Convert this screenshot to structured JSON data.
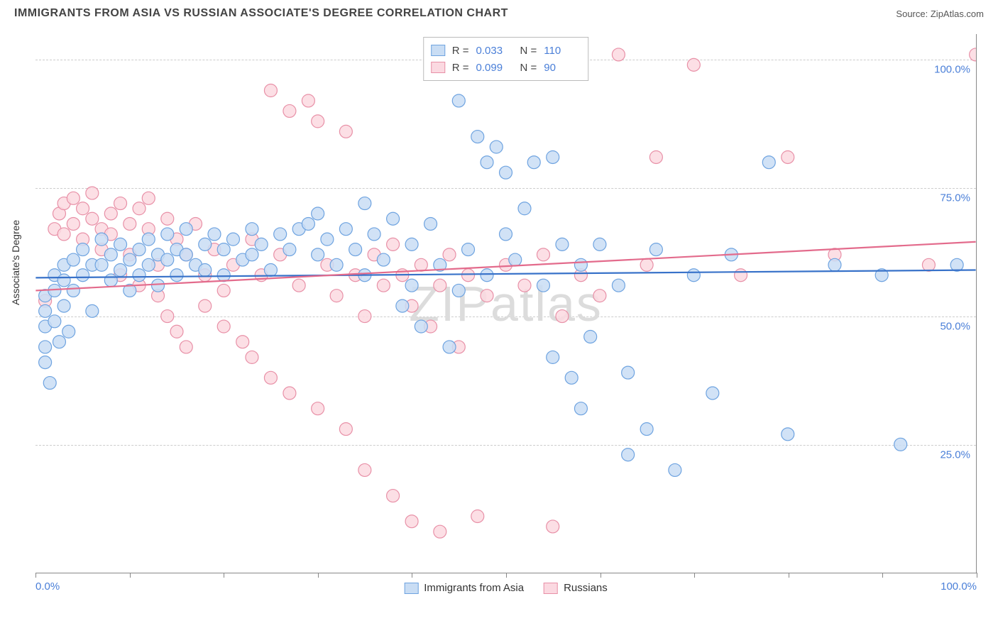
{
  "header": {
    "title": "IMMIGRANTS FROM ASIA VS RUSSIAN ASSOCIATE'S DEGREE CORRELATION CHART",
    "source_label": "Source:",
    "source_name": "ZipAtlas.com"
  },
  "chart": {
    "type": "scatter",
    "ylabel": "Associate's Degree",
    "watermark": "ZIPatlas",
    "xlim": [
      0,
      100
    ],
    "ylim": [
      0,
      105
    ],
    "yticks": [
      25,
      50,
      75,
      100
    ],
    "ytick_labels": [
      "25.0%",
      "50.0%",
      "75.0%",
      "100.0%"
    ],
    "xticks": [
      0,
      10,
      20,
      30,
      40,
      50,
      60,
      70,
      80,
      90,
      100
    ],
    "xtick_labels_shown": {
      "0": "0.0%",
      "100": "100.0%"
    },
    "grid_color": "#cccccc",
    "axis_color": "#888888",
    "label_color": "#4a7fd8",
    "marker_radius": 9,
    "marker_stroke_width": 1.2,
    "trend_line_width": 2.2,
    "series": [
      {
        "name": "Immigrants from Asia",
        "fill": "#c9ddf4",
        "stroke": "#6ea3e0",
        "line_color": "#3872c9",
        "r": 0.033,
        "n": 110,
        "trend": {
          "y0": 57.5,
          "y100": 59.0
        },
        "points": [
          [
            1,
            54
          ],
          [
            1,
            51
          ],
          [
            1,
            48
          ],
          [
            1,
            44
          ],
          [
            1,
            41
          ],
          [
            1.5,
            37
          ],
          [
            2,
            49
          ],
          [
            2,
            55
          ],
          [
            2,
            58
          ],
          [
            2.5,
            45
          ],
          [
            3,
            60
          ],
          [
            3,
            57
          ],
          [
            3,
            52
          ],
          [
            3.5,
            47
          ],
          [
            4,
            61
          ],
          [
            4,
            55
          ],
          [
            5,
            63
          ],
          [
            5,
            58
          ],
          [
            6,
            60
          ],
          [
            6,
            51
          ],
          [
            7,
            65
          ],
          [
            7,
            60
          ],
          [
            8,
            62
          ],
          [
            8,
            57
          ],
          [
            9,
            64
          ],
          [
            9,
            59
          ],
          [
            10,
            61
          ],
          [
            10,
            55
          ],
          [
            11,
            63
          ],
          [
            11,
            58
          ],
          [
            12,
            65
          ],
          [
            12,
            60
          ],
          [
            13,
            62
          ],
          [
            13,
            56
          ],
          [
            14,
            66
          ],
          [
            14,
            61
          ],
          [
            15,
            63
          ],
          [
            15,
            58
          ],
          [
            16,
            67
          ],
          [
            16,
            62
          ],
          [
            17,
            60
          ],
          [
            18,
            64
          ],
          [
            18,
            59
          ],
          [
            19,
            66
          ],
          [
            20,
            63
          ],
          [
            20,
            58
          ],
          [
            21,
            65
          ],
          [
            22,
            61
          ],
          [
            23,
            67
          ],
          [
            23,
            62
          ],
          [
            24,
            64
          ],
          [
            25,
            59
          ],
          [
            26,
            66
          ],
          [
            27,
            63
          ],
          [
            28,
            67
          ],
          [
            29,
            68
          ],
          [
            30,
            62
          ],
          [
            30,
            70
          ],
          [
            31,
            65
          ],
          [
            32,
            60
          ],
          [
            33,
            67
          ],
          [
            34,
            63
          ],
          [
            35,
            58
          ],
          [
            35,
            72
          ],
          [
            36,
            66
          ],
          [
            37,
            61
          ],
          [
            38,
            69
          ],
          [
            39,
            52
          ],
          [
            40,
            64
          ],
          [
            40,
            56
          ],
          [
            41,
            48
          ],
          [
            42,
            68
          ],
          [
            43,
            60
          ],
          [
            44,
            44
          ],
          [
            45,
            55
          ],
          [
            45,
            92
          ],
          [
            46,
            63
          ],
          [
            47,
            85
          ],
          [
            48,
            58
          ],
          [
            48,
            80
          ],
          [
            49,
            83
          ],
          [
            50,
            66
          ],
          [
            50,
            78
          ],
          [
            51,
            61
          ],
          [
            52,
            71
          ],
          [
            53,
            80
          ],
          [
            54,
            56
          ],
          [
            55,
            81
          ],
          [
            55,
            42
          ],
          [
            56,
            64
          ],
          [
            57,
            38
          ],
          [
            58,
            60
          ],
          [
            58,
            32
          ],
          [
            59,
            46
          ],
          [
            60,
            64
          ],
          [
            62,
            56
          ],
          [
            63,
            23
          ],
          [
            63,
            39
          ],
          [
            65,
            28
          ],
          [
            66,
            63
          ],
          [
            68,
            20
          ],
          [
            70,
            58
          ],
          [
            72,
            35
          ],
          [
            74,
            62
          ],
          [
            78,
            80
          ],
          [
            80,
            27
          ],
          [
            85,
            60
          ],
          [
            90,
            58
          ],
          [
            92,
            25
          ],
          [
            98,
            60
          ]
        ]
      },
      {
        "name": "Russians",
        "fill": "#fbd9e1",
        "stroke": "#e890a7",
        "line_color": "#e36b8c",
        "r": 0.099,
        "n": 90,
        "trend": {
          "y0": 55.0,
          "y100": 64.5
        },
        "points": [
          [
            1,
            53
          ],
          [
            2,
            67
          ],
          [
            2.5,
            70
          ],
          [
            3,
            66
          ],
          [
            3,
            72
          ],
          [
            4,
            68
          ],
          [
            4,
            73
          ],
          [
            5,
            65
          ],
          [
            5,
            71
          ],
          [
            6,
            69
          ],
          [
            6,
            74
          ],
          [
            7,
            67
          ],
          [
            7,
            63
          ],
          [
            8,
            70
          ],
          [
            8,
            66
          ],
          [
            9,
            72
          ],
          [
            9,
            58
          ],
          [
            10,
            68
          ],
          [
            10,
            62
          ],
          [
            11,
            71
          ],
          [
            11,
            56
          ],
          [
            12,
            67
          ],
          [
            12,
            73
          ],
          [
            13,
            60
          ],
          [
            13,
            54
          ],
          [
            14,
            69
          ],
          [
            14,
            50
          ],
          [
            15,
            65
          ],
          [
            15,
            47
          ],
          [
            16,
            62
          ],
          [
            16,
            44
          ],
          [
            17,
            68
          ],
          [
            18,
            58
          ],
          [
            18,
            52
          ],
          [
            19,
            63
          ],
          [
            20,
            55
          ],
          [
            20,
            48
          ],
          [
            21,
            60
          ],
          [
            22,
            45
          ],
          [
            23,
            65
          ],
          [
            23,
            42
          ],
          [
            24,
            58
          ],
          [
            25,
            94
          ],
          [
            25,
            38
          ],
          [
            26,
            62
          ],
          [
            27,
            90
          ],
          [
            27,
            35
          ],
          [
            28,
            56
          ],
          [
            29,
            92
          ],
          [
            30,
            88
          ],
          [
            30,
            32
          ],
          [
            31,
            60
          ],
          [
            32,
            54
          ],
          [
            33,
            86
          ],
          [
            33,
            28
          ],
          [
            34,
            58
          ],
          [
            35,
            50
          ],
          [
            35,
            20
          ],
          [
            36,
            62
          ],
          [
            37,
            56
          ],
          [
            38,
            15
          ],
          [
            38,
            64
          ],
          [
            39,
            58
          ],
          [
            40,
            52
          ],
          [
            40,
            10
          ],
          [
            41,
            60
          ],
          [
            42,
            48
          ],
          [
            43,
            8
          ],
          [
            43,
            56
          ],
          [
            44,
            62
          ],
          [
            45,
            44
          ],
          [
            46,
            58
          ],
          [
            47,
            11
          ],
          [
            48,
            54
          ],
          [
            50,
            60
          ],
          [
            52,
            56
          ],
          [
            54,
            62
          ],
          [
            55,
            9
          ],
          [
            56,
            50
          ],
          [
            58,
            58
          ],
          [
            60,
            54
          ],
          [
            62,
            101
          ],
          [
            65,
            60
          ],
          [
            66,
            81
          ],
          [
            70,
            99
          ],
          [
            75,
            58
          ],
          [
            80,
            81
          ],
          [
            85,
            62
          ],
          [
            95,
            60
          ],
          [
            100,
            101
          ]
        ]
      }
    ],
    "legend_top": {
      "r_label": "R =",
      "n_label": "N ="
    },
    "legend_bottom": {
      "items": [
        "Immigrants from Asia",
        "Russians"
      ]
    }
  }
}
